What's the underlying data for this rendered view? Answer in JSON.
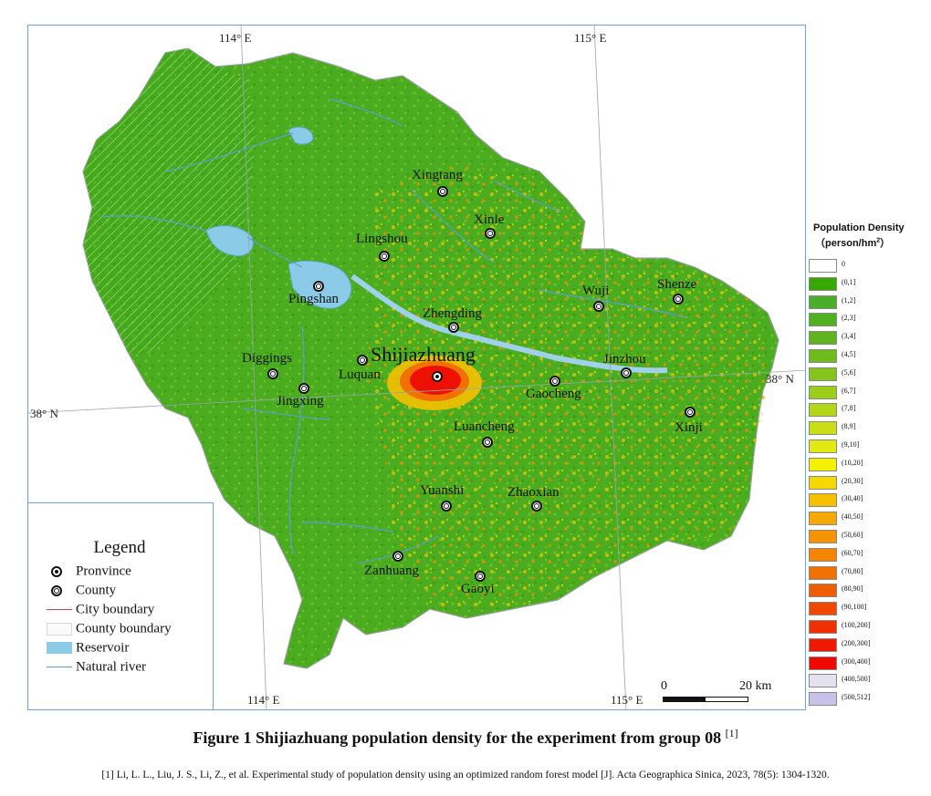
{
  "coordinates": {
    "top_left": "114° E",
    "top_right": "115° E",
    "bottom_left": "114° E",
    "bottom_right": "115° E",
    "left_lat": "38° N",
    "right_lat": "38° N"
  },
  "cities": {
    "province": "Shijiazhuang",
    "counties": [
      "Xingtang",
      "Xinle",
      "Lingshou",
      "Pingshan",
      "Zhengding",
      "Wuji",
      "Shenze",
      "Diggings",
      "Luquan",
      "Jingxing",
      "Gaocheng",
      "Jinzhou",
      "Xinji",
      "Luancheng",
      "Yuanshi",
      "Zhaoxian",
      "Zanhuang",
      "Gaoyi"
    ]
  },
  "legend": {
    "title": "Legend",
    "items": [
      "Pronvince",
      "County",
      "City boundary",
      "County boundary",
      "Reservoir",
      "Natural river"
    ]
  },
  "density_legend": {
    "title": "Population Density",
    "unit_prefix": "（person/hm",
    "unit_sup": "2",
    "unit_suffix": "）",
    "classes": [
      {
        "label": "0",
        "color": "#ffffff"
      },
      {
        "label": "(0,1]",
        "color": "#38a800"
      },
      {
        "label": "(1,2]",
        "color": "#4aae2a"
      },
      {
        "label": "(2,3]",
        "color": "#4fb020"
      },
      {
        "label": "(3,4]",
        "color": "#60b51e"
      },
      {
        "label": "(4,5]",
        "color": "#70bb1c"
      },
      {
        "label": "(5,6]",
        "color": "#85c41a"
      },
      {
        "label": "(6,7]",
        "color": "#9ccd18"
      },
      {
        "label": "(7,8]",
        "color": "#b3d616"
      },
      {
        "label": "(8,9]",
        "color": "#c9df14"
      },
      {
        "label": "(9,10]",
        "color": "#e2e912"
      },
      {
        "label": "(10,20]",
        "color": "#f5f200"
      },
      {
        "label": "(20,30]",
        "color": "#f5d800"
      },
      {
        "label": "(30,40]",
        "color": "#f5c000"
      },
      {
        "label": "(40,50]",
        "color": "#f5a800"
      },
      {
        "label": "(50,60]",
        "color": "#f59400"
      },
      {
        "label": "(60,70]",
        "color": "#f58400"
      },
      {
        "label": "(70,80]",
        "color": "#f07000"
      },
      {
        "label": "(80,90]",
        "color": "#f05c00"
      },
      {
        "label": "(90,100]",
        "color": "#f04800"
      },
      {
        "label": "(100,200]",
        "color": "#f03000"
      },
      {
        "label": "(200,300]",
        "color": "#f01800"
      },
      {
        "label": "(300,400]",
        "color": "#ee0a00"
      },
      {
        "label": "(400,500]",
        "color": "#e6e1ee"
      },
      {
        "label": "(500,512]",
        "color": "#c8c2e8"
      }
    ]
  },
  "scale_bar": {
    "start": "0",
    "end": "20 km"
  },
  "caption": {
    "text": "Figure 1  Shijiazhuang population density for the experiment from group  08 ",
    "ref_mark": "[1]"
  },
  "reference": "[1] Li, L. L., Liu, J. S., Li, Z., et al. Experimental study of population density using an optimized random forest model [J]. Acta Geographica Sinica, 2023, 78(5): 1304-1320."
}
